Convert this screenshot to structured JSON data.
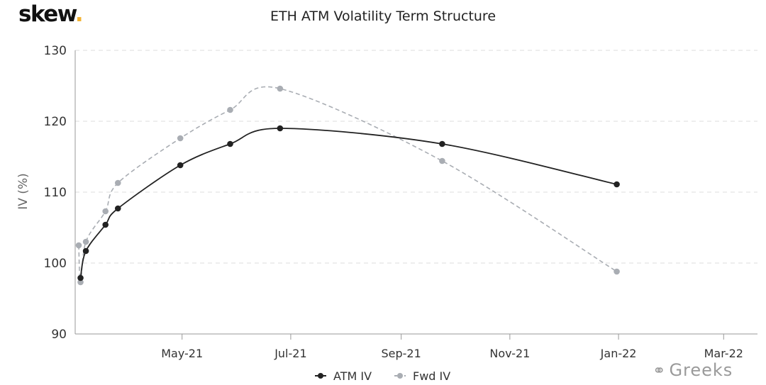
{
  "brand": {
    "logo_text": "skew",
    "logo_dot": ".",
    "watermark_text": "Greeks",
    "watermark_icon": "wechat-icon"
  },
  "chart_data": {
    "type": "line",
    "title": "ETH ATM Volatility Term Structure",
    "xlabel": "",
    "ylabel": "IV (%)",
    "ylim": [
      90,
      130
    ],
    "yticks": [
      90,
      100,
      110,
      120,
      130
    ],
    "xlim": [
      "2021-03-02",
      "2022-03-20"
    ],
    "xticks": [
      {
        "date": "2021-05-01",
        "label": "May-21"
      },
      {
        "date": "2021-07-01",
        "label": "Jul-21"
      },
      {
        "date": "2021-09-01",
        "label": "Sep-21"
      },
      {
        "date": "2021-11-01",
        "label": "Nov-21"
      },
      {
        "date": "2022-01-01",
        "label": "Jan-22"
      },
      {
        "date": "2022-03-01",
        "label": "Mar-22"
      }
    ],
    "grid": "horizontal dashed",
    "legend": "bottom-center",
    "series": [
      {
        "name": "ATM IV",
        "color": "#222222",
        "style": "solid",
        "points": [
          {
            "x": "2021-03-05",
            "y": 97.9
          },
          {
            "x": "2021-03-08",
            "y": 101.7
          },
          {
            "x": "2021-03-19",
            "y": 105.4
          },
          {
            "x": "2021-03-26",
            "y": 107.7
          },
          {
            "x": "2021-04-30",
            "y": 113.8
          },
          {
            "x": "2021-05-28",
            "y": 116.8
          },
          {
            "x": "2021-06-25",
            "y": 119.0
          },
          {
            "x": "2021-09-24",
            "y": 116.8
          },
          {
            "x": "2021-12-31",
            "y": 111.1
          }
        ]
      },
      {
        "name": "Fwd IV",
        "color": "#a9adb3",
        "style": "dashed",
        "points": [
          {
            "x": "2021-03-04",
            "y": 102.5
          },
          {
            "x": "2021-03-05",
            "y": 97.3
          },
          {
            "x": "2021-03-08",
            "y": 103.0
          },
          {
            "x": "2021-03-19",
            "y": 107.3
          },
          {
            "x": "2021-03-26",
            "y": 111.3
          },
          {
            "x": "2021-04-30",
            "y": 117.6
          },
          {
            "x": "2021-05-28",
            "y": 121.6
          },
          {
            "x": "2021-06-25",
            "y": 124.6
          },
          {
            "x": "2021-09-24",
            "y": 114.4
          },
          {
            "x": "2021-12-31",
            "y": 98.8
          }
        ]
      }
    ]
  }
}
